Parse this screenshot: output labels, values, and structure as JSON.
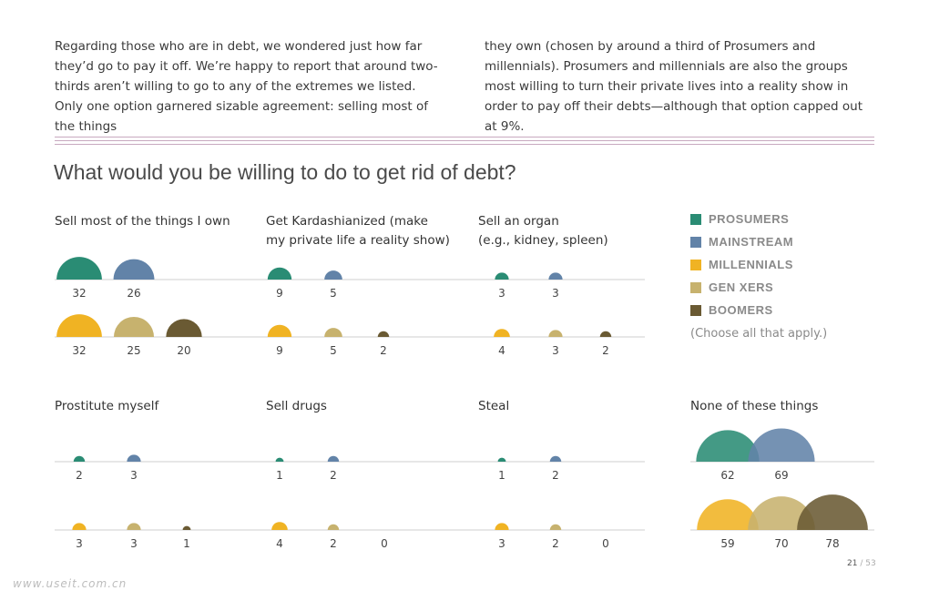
{
  "intro": {
    "left": "Regarding those who are in debt, we wondered just how far they’d go to pay it off. We’re happy to report that around two-thirds aren’t willing to go to any of the extremes we listed. Only one option garnered sizable agreement: selling most of the things",
    "right": "they own (chosen by around a third of Prosumers and millennials). Prosumers and millennials are also the groups most willing to turn their private lives into a reality show in order to pay off their debts—although that option capped out at 9%."
  },
  "headline": "What would you be willing to do to get rid of debt?",
  "legend": {
    "items": [
      {
        "label": "PROSUMERS",
        "color": "#2a8c74"
      },
      {
        "label": "MAINSTREAM",
        "color": "#6283a8"
      },
      {
        "label": "MILLENNIALS",
        "color": "#f0b323"
      },
      {
        "label": "GEN XERS",
        "color": "#c7b26e"
      },
      {
        "label": "BOOMERS",
        "color": "#6a5a33"
      }
    ],
    "note": "(Choose all that apply.)"
  },
  "page": {
    "current": "21",
    "total": "/ 53"
  },
  "watermark": "www.useit.com.cn",
  "chart_data": {
    "type": "semicircle-area",
    "unit": "percent",
    "series": [
      "PROSUMERS",
      "MAINSTREAM",
      "MILLENNIALS",
      "GEN XERS",
      "BOOMERS"
    ],
    "panels": [
      {
        "title": "Sell most of the things I own",
        "values": [
          32,
          26,
          32,
          25,
          20
        ]
      },
      {
        "title": "Get Kardashianized (make my private life a reality show)",
        "title_lines": [
          "Get Kardashianized (make",
          "my private life a reality show)"
        ],
        "values": [
          9,
          5,
          9,
          5,
          2
        ]
      },
      {
        "title": "Sell an organ (e.g., kidney, spleen)",
        "title_lines": [
          "Sell an organ",
          "(e.g., kidney, spleen)"
        ],
        "values": [
          3,
          3,
          4,
          3,
          2
        ]
      },
      {
        "title": "Prostitute myself",
        "values": [
          2,
          3,
          3,
          3,
          1
        ]
      },
      {
        "title": "Sell drugs",
        "values": [
          1,
          2,
          4,
          2,
          0
        ]
      },
      {
        "title": "Steal",
        "values": [
          1,
          2,
          3,
          2,
          0
        ]
      },
      {
        "title": "None of these things",
        "values": [
          62,
          69,
          59,
          70,
          78
        ]
      }
    ]
  }
}
